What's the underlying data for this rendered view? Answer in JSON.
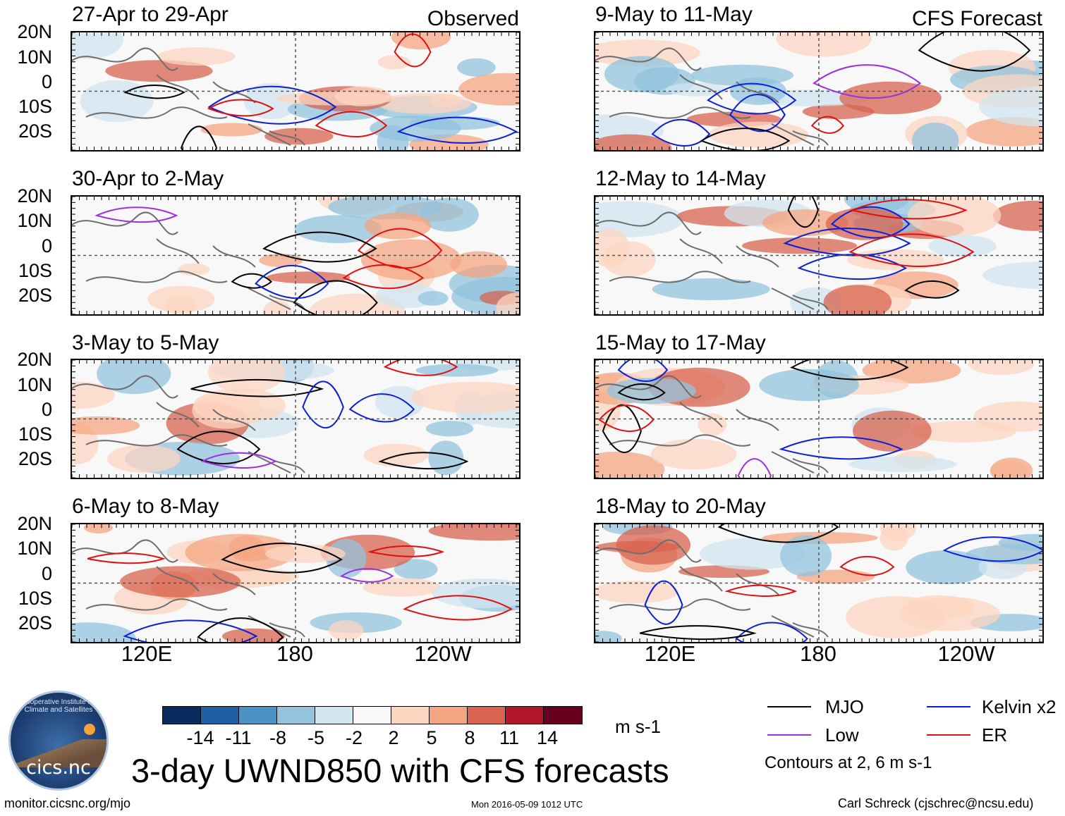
{
  "panels": [
    {
      "id": "p1",
      "title": "27-Apr to 29-Apr",
      "label": "Observed",
      "seed": 11
    },
    {
      "id": "p2",
      "title": "9-May to 11-May",
      "label": "CFS Forecast",
      "seed": 23
    },
    {
      "id": "p3",
      "title": "30-Apr to 2-May",
      "label": "",
      "seed": 37
    },
    {
      "id": "p4",
      "title": "12-May to 14-May",
      "label": "",
      "seed": 41
    },
    {
      "id": "p5",
      "title": "3-May to 5-May",
      "label": "",
      "seed": 53
    },
    {
      "id": "p6",
      "title": "15-May to 17-May",
      "label": "",
      "seed": 67
    },
    {
      "id": "p7",
      "title": "6-May to 8-May",
      "label": "",
      "seed": 71
    },
    {
      "id": "p8",
      "title": "18-May to 20-May",
      "label": "",
      "seed": 83
    }
  ],
  "axes": {
    "y_ticks": [
      "20N",
      "10N",
      "0",
      "10S",
      "20S"
    ],
    "x_ticks": [
      "120E",
      "180",
      "120W"
    ]
  },
  "colorbar": {
    "colors": [
      "#0b2b5e",
      "#1f5fa3",
      "#4b92c6",
      "#93c3de",
      "#d2e6f0",
      "#f7f8f7",
      "#fcd6c1",
      "#f4a582",
      "#d8634f",
      "#b2182b",
      "#67001f"
    ],
    "ticks": [
      "-14",
      "-11",
      "-8",
      "-5",
      "-2",
      "2",
      "5",
      "8",
      "11",
      "14"
    ],
    "units": "m s-1"
  },
  "main_title": "3-day UWND850 with CFS forecasts",
  "legend": {
    "items": [
      {
        "label": "MJO",
        "color": "#000000"
      },
      {
        "label": "Kelvin x2",
        "color": "#0a1fd6"
      },
      {
        "label": "Low",
        "color": "#9b30e0"
      },
      {
        "label": "ER",
        "color": "#e01010"
      }
    ],
    "note": "Contours at 2, 6 m s-1"
  },
  "logo": {
    "text": "cics.nc",
    "ring": "Cooperative Institute for Climate and Satellites"
  },
  "footer": {
    "left": "monitor.cicsnc.org/mjo",
    "center": "Mon 2016-05-09 1012 UTC",
    "right": "Carl Schreck (cjschrec@ncsu.edu)"
  }
}
